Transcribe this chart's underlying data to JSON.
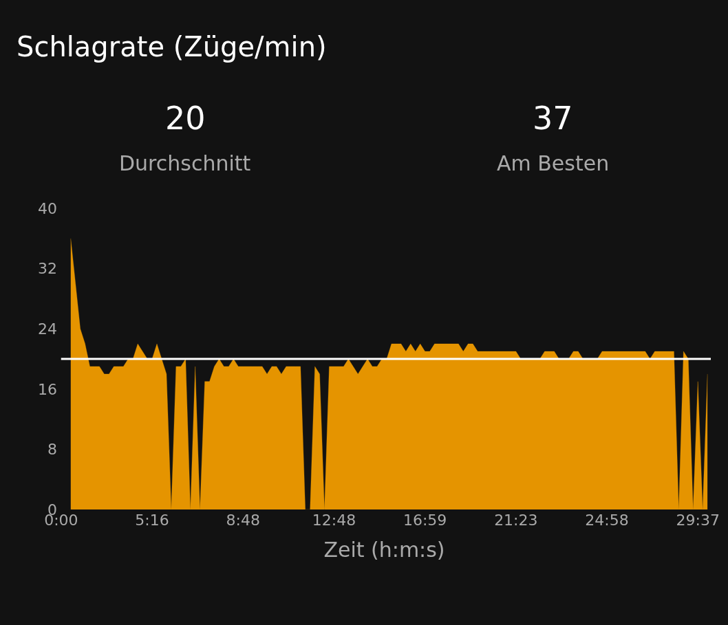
{
  "chart_data": {
    "type": "area",
    "title": "Schlagrate (Züge/min)",
    "xlabel": "Zeit (h:m:s)",
    "annotations": [
      "20",
      "Durchschnitt",
      "37",
      "Am Besten"
    ],
    "categories": [
      "0:00",
      null,
      null,
      null,
      null,
      null,
      null,
      null,
      null,
      null,
      null,
      null,
      null,
      null,
      null,
      null,
      null,
      null,
      null,
      "5:16",
      null,
      null,
      null,
      null,
      null,
      null,
      null,
      null,
      null,
      null,
      null,
      null,
      null,
      null,
      null,
      null,
      null,
      null,
      "8:48",
      null,
      null,
      null,
      null,
      null,
      null,
      null,
      null,
      null,
      null,
      null,
      null,
      null,
      null,
      null,
      null,
      null,
      null,
      "12:48",
      null,
      null,
      null,
      null,
      null,
      null,
      null,
      null,
      null,
      null,
      null,
      null,
      null,
      null,
      null,
      null,
      null,
      null,
      "16:59",
      null,
      null,
      null,
      null,
      null,
      null,
      null,
      null,
      null,
      null,
      null,
      null,
      null,
      null,
      null,
      null,
      null,
      null,
      "21:23",
      null,
      null,
      null,
      null,
      null,
      null,
      null,
      null,
      null,
      null,
      null,
      null,
      null,
      null,
      null,
      null,
      null,
      null,
      "24:58",
      null,
      null,
      null,
      null,
      null,
      null,
      null,
      null,
      null,
      null,
      null,
      null,
      null,
      null,
      null,
      null,
      null,
      null,
      "29:37",
      null,
      null
    ],
    "series": [
      {
        "color": "#e59400",
        "values": [
          null,
          null,
          36,
          30,
          24,
          22,
          19,
          19,
          19,
          18,
          18,
          19,
          19,
          19,
          20,
          20,
          22,
          21,
          20,
          20,
          22,
          20,
          18,
          0,
          19,
          19,
          20,
          0,
          19,
          0,
          17,
          17,
          19,
          20,
          19,
          19,
          20,
          19,
          19,
          19,
          19,
          19,
          19,
          18,
          19,
          19,
          18,
          19,
          19,
          19,
          19,
          0,
          0,
          19,
          18,
          0,
          19,
          19,
          19,
          19,
          20,
          19,
          18,
          19,
          20,
          19,
          19,
          20,
          20,
          22,
          22,
          22,
          21,
          22,
          21,
          22,
          21,
          21,
          22,
          22,
          22,
          22,
          22,
          22,
          21,
          22,
          22,
          21,
          21,
          21,
          21,
          21,
          21,
          21,
          21,
          21,
          20,
          20,
          20,
          20,
          20,
          21,
          21,
          21,
          20,
          20,
          20,
          21,
          21,
          20,
          20,
          20,
          20,
          21,
          21,
          21,
          21,
          21,
          21,
          21,
          21,
          21,
          21,
          20,
          21,
          21,
          21,
          21,
          21,
          0,
          21,
          20,
          0,
          17,
          0,
          18
        ]
      }
    ],
    "ylim": [
      0,
      40
    ],
    "yticks": [
      0,
      8,
      16,
      24,
      32,
      40
    ],
    "ref_lines": [
      {
        "axis": "y",
        "value": 20,
        "color": "#ffffff"
      }
    ]
  }
}
